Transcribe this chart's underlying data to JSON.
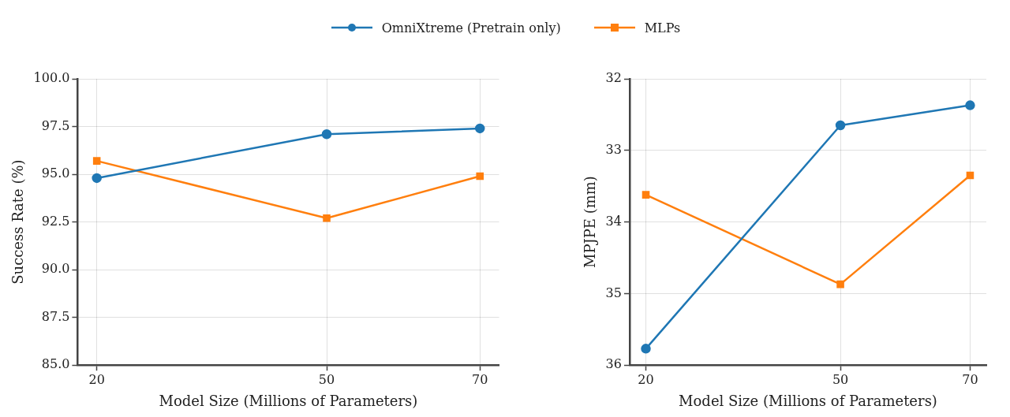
{
  "chart_data": [
    {
      "type": "line",
      "xlabel": "Model Size (Millions of Parameters)",
      "ylabel": "Success Rate (%)",
      "x": [
        20,
        50,
        70
      ],
      "xlim": [
        17.5,
        72.5
      ],
      "xticks": [
        20,
        50,
        70
      ],
      "ylim": [
        85,
        100
      ],
      "yticks": [
        {
          "value": 85,
          "label": "85.0"
        },
        {
          "value": 87.5,
          "label": "87.5"
        },
        {
          "value": 90,
          "label": "90.0"
        },
        {
          "value": 92.5,
          "label": "92.5"
        },
        {
          "value": 95,
          "label": "95.0"
        },
        {
          "value": 97.5,
          "label": "97.5"
        },
        {
          "value": 100,
          "label": "100.0"
        }
      ],
      "grid": true,
      "legend": "top",
      "line_style": "solid",
      "series": [
        {
          "name": "OmniXtreme (Pretrain only)",
          "color": "#1f77b4",
          "marker": "circle",
          "values": [
            94.8,
            97.1,
            97.4
          ]
        },
        {
          "name": "MLPs",
          "color": "#ff7f0e",
          "marker": "square",
          "values": [
            95.7,
            92.7,
            94.9
          ]
        }
      ]
    },
    {
      "type": "line",
      "xlabel": "Model Size (Millions of Parameters)",
      "ylabel": "MPJPE (mm)",
      "x": [
        20,
        50,
        70
      ],
      "xlim": [
        17.5,
        72.5
      ],
      "xticks": [
        20,
        50,
        70
      ],
      "ylim": [
        36,
        32
      ],
      "yticks": [
        32,
        33,
        34,
        35,
        36
      ],
      "grid": true,
      "legend": "top",
      "line_style": "solid",
      "series": [
        {
          "name": "OmniXtreme (Pretrain only)",
          "color": "#1f77b4",
          "marker": "circle",
          "values": [
            35.77,
            32.65,
            32.37
          ]
        },
        {
          "name": "MLPs",
          "color": "#ff7f0e",
          "marker": "square",
          "values": [
            33.62,
            34.87,
            33.35
          ]
        }
      ]
    }
  ]
}
